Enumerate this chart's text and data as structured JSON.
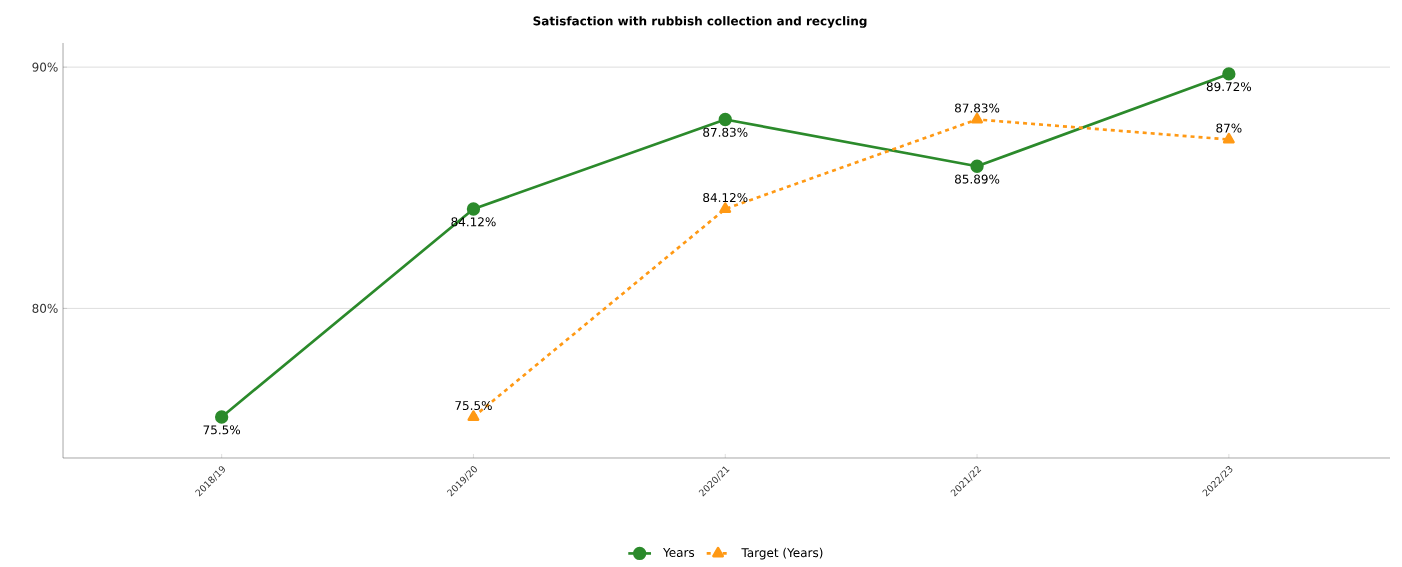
{
  "chart_data": {
    "type": "line",
    "title": "Satisfaction with rubbish collection and recycling",
    "categories": [
      "2018/19",
      "2019/20",
      "2020/21",
      "2021/22",
      "2022/23"
    ],
    "series": [
      {
        "name": "Years",
        "color": "#2b8a2b",
        "marker": "circle",
        "line_style": "solid",
        "values": [
          75.5,
          84.12,
          87.83,
          85.89,
          89.72
        ],
        "value_labels": [
          "75.5%",
          "84.12%",
          "87.83%",
          "85.89%",
          "89.72%"
        ]
      },
      {
        "name": "Target (Years)",
        "color": "#ff9914",
        "marker": "triangle",
        "line_style": "dashed",
        "values": [
          null,
          75.5,
          84.12,
          87.83,
          87
        ],
        "value_labels": [
          null,
          "75.5%",
          "84.12%",
          "87.83%",
          "87%"
        ]
      }
    ],
    "ylim": [
      73.8,
      91.0
    ],
    "yticks": [
      {
        "value": 80,
        "label": "80%"
      },
      {
        "value": 90,
        "label": "90%"
      }
    ],
    "grid": "y",
    "legend": "bottom"
  }
}
